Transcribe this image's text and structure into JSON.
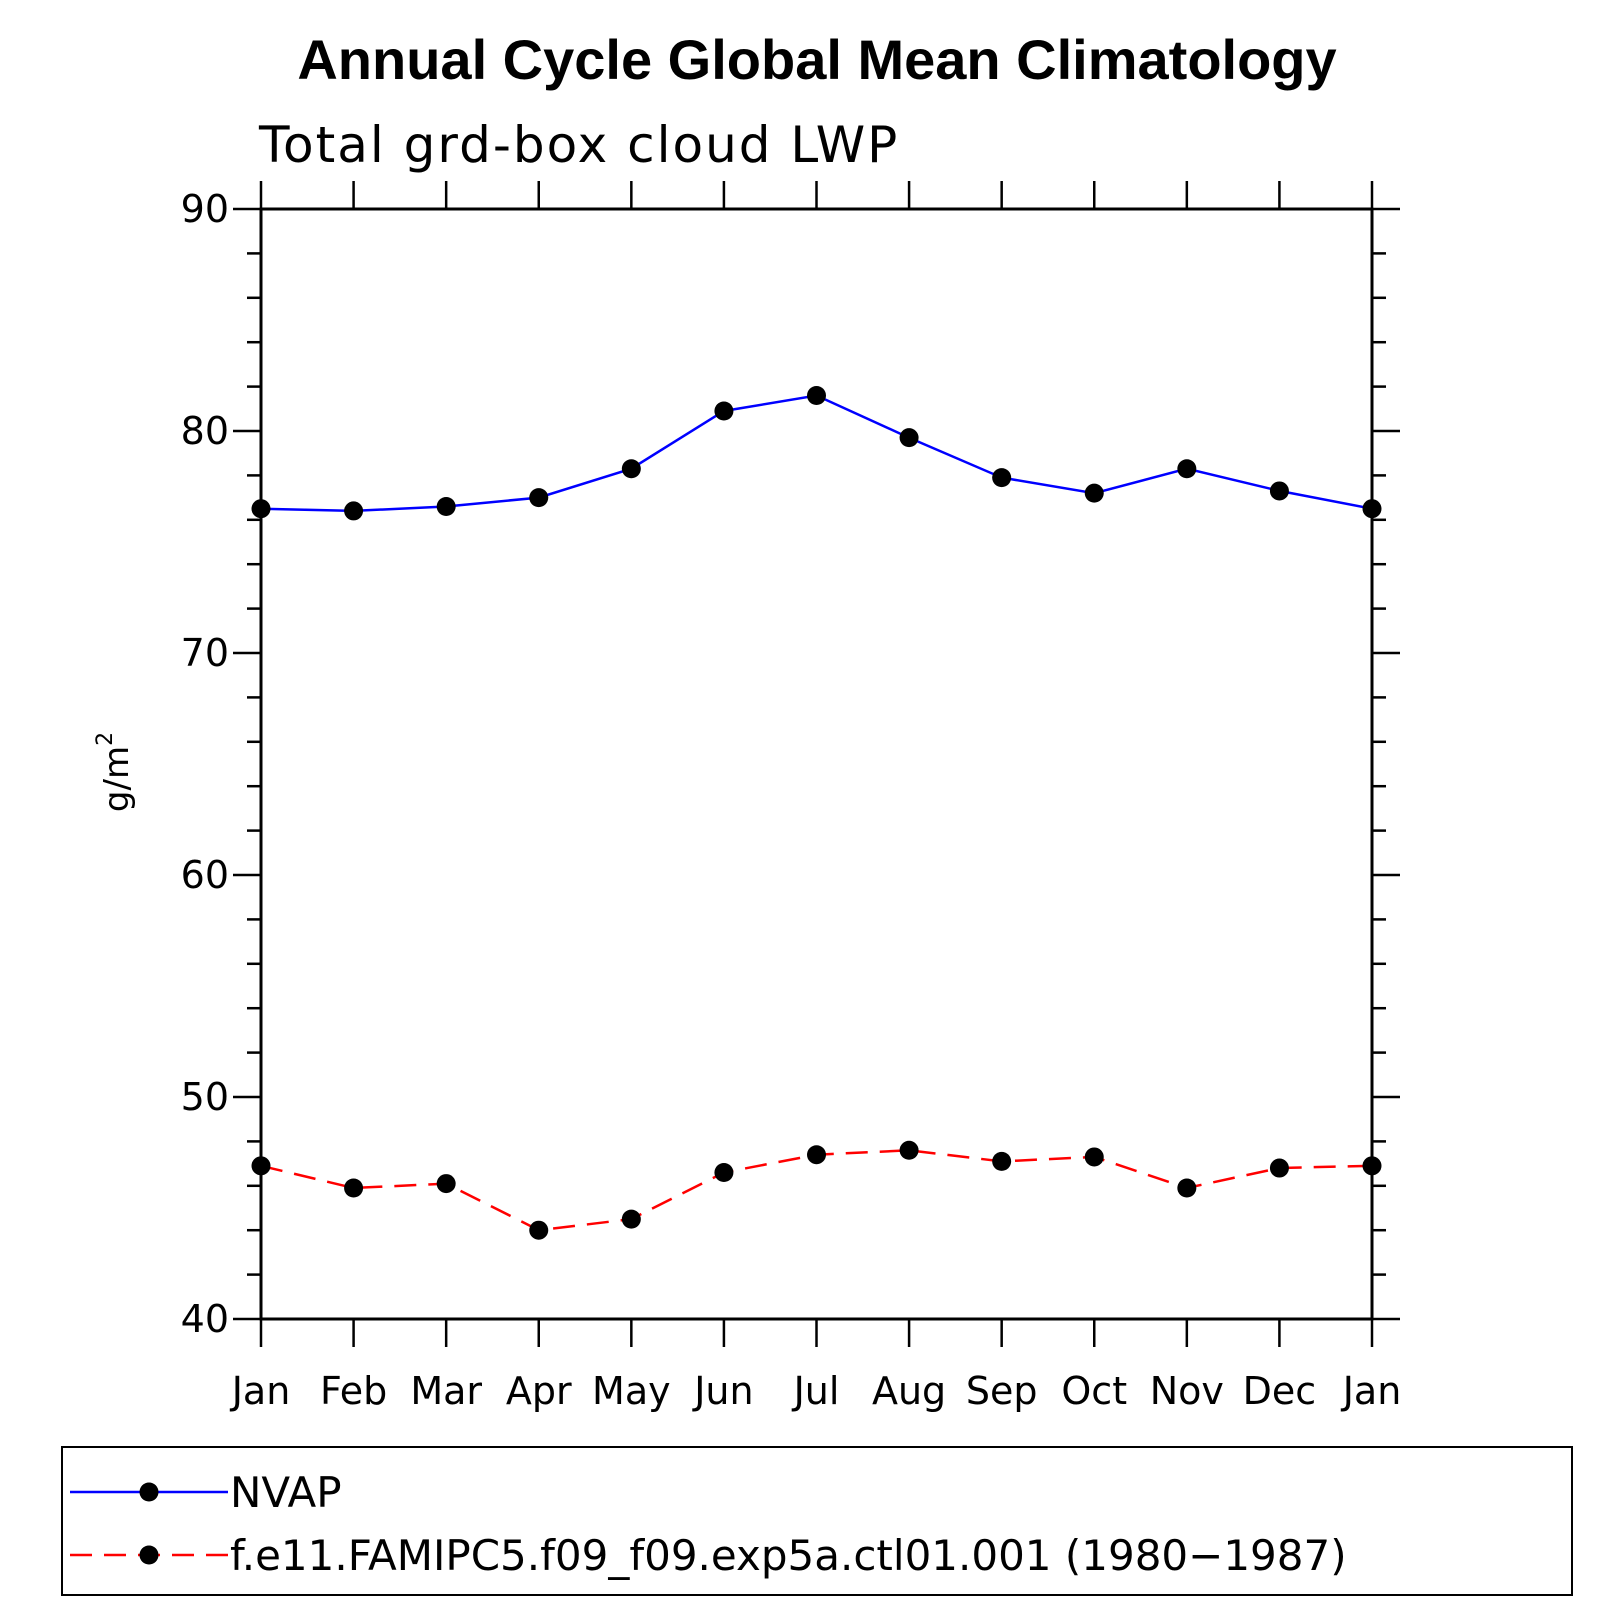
{
  "chart_data": {
    "type": "line",
    "title": "Annual Cycle Global Mean Climatology",
    "subtitle": "Total grd-box cloud LWP",
    "ylabel": "g/m",
    "ylabel_sup": "2",
    "xlabel": "",
    "categories": [
      "Jan",
      "Feb",
      "Mar",
      "Apr",
      "May",
      "Jun",
      "Jul",
      "Aug",
      "Sep",
      "Oct",
      "Nov",
      "Dec",
      "Jan"
    ],
    "ylim": [
      40,
      90
    ],
    "yticks": [
      40,
      50,
      60,
      70,
      80,
      90
    ],
    "grid": false,
    "legend_position": "bottom",
    "series": [
      {
        "name": "NVAP",
        "color": "#0000ff",
        "line_style": "solid",
        "marker": "filled-circle",
        "values": [
          76.5,
          76.4,
          76.6,
          77.0,
          78.3,
          80.9,
          81.6,
          79.7,
          77.9,
          77.2,
          78.3,
          77.3,
          76.5
        ]
      },
      {
        "name": "f.e11.FAMIPC5.f09_f09.exp5a.ctl01.001 (1980−1987)",
        "color": "#ff0000",
        "line_style": "dashed",
        "marker": "filled-circle",
        "values": [
          46.9,
          45.9,
          46.1,
          44.0,
          44.5,
          46.6,
          47.4,
          47.6,
          47.1,
          47.3,
          45.9,
          46.8,
          46.9
        ]
      }
    ]
  }
}
